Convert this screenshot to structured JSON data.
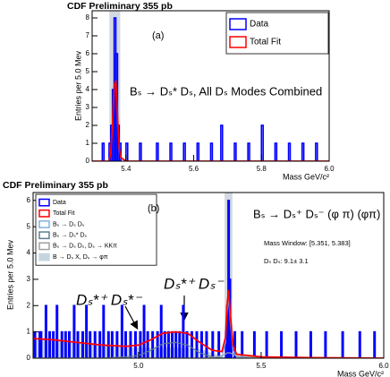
{
  "chart_data": [
    {
      "type": "histogram",
      "title": "CDF Preliminary 355 pb",
      "xlabel": "Mass GeV/c²",
      "ylabel": "Entries per 5.0 Mev",
      "xlim": [
        5.3,
        6.0
      ],
      "ylim": [
        0,
        8.4
      ],
      "xticks": [
        5.4,
        5.6,
        5.8,
        {
          "value": 6,
          "label": "6.0"
        }
      ],
      "yticks": [
        0,
        1,
        2,
        3,
        4,
        5,
        6,
        7,
        8
      ],
      "legend": "upper right",
      "highlight": [
        5.351,
        5.383
      ],
      "data": {
        "name": "Data",
        "color": "#0000ff",
        "bins": [
          5.3,
          5.33,
          5.335,
          5.35,
          5.355,
          5.36,
          5.365,
          5.37,
          5.375,
          5.38,
          5.385,
          5.4,
          5.405,
          5.44,
          5.445,
          5.49,
          5.495,
          5.53,
          5.535,
          5.57,
          5.575,
          5.61,
          5.615,
          5.65,
          5.655,
          5.68,
          5.685,
          5.72,
          5.725,
          5.76,
          5.765,
          5.8,
          5.805,
          5.84,
          5.845,
          5.88,
          5.885,
          5.92,
          5.925,
          5.96,
          5.965,
          6.0
        ],
        "values": [
          0,
          1,
          0,
          1,
          2,
          4,
          8,
          6,
          2,
          1,
          0,
          1,
          0,
          1,
          0,
          1,
          0,
          1,
          0,
          1,
          0,
          1,
          0,
          1,
          0,
          2,
          0,
          1,
          0,
          1,
          0,
          2,
          0,
          1,
          0,
          1,
          0,
          1,
          0,
          1,
          0
        ]
      },
      "curves": {
        "x": [
          5.3,
          5.35,
          5.355,
          5.36,
          5.365,
          5.37,
          5.375,
          5.38,
          5.385,
          5.4,
          6.0
        ],
        "series": [
          {
            "name": "Total Fit",
            "color": "#ff0000",
            "values": [
              0,
              0,
              0.5,
              2,
              4.2,
              4.5,
              2.5,
              0.7,
              0.2,
              0,
              0
            ]
          }
        ]
      },
      "annotations": [
        "(a)",
        "Bₛ → Dₛ* Dₛ,  All Dₛ Modes Combined"
      ]
    },
    {
      "type": "histogram",
      "title": "CDF Preliminary 355 pb",
      "xlabel": "Mass GeV/c²",
      "ylabel": "Entries per 5.0 Mev",
      "xlim": [
        4.57,
        6.0
      ],
      "ylim": [
        0,
        6.3
      ],
      "xticks": [
        {
          "value": 5,
          "label": "5.0"
        },
        5.5,
        {
          "value": 6,
          "label": "6.0"
        }
      ],
      "yticks": [
        0,
        1,
        2,
        3,
        4,
        5,
        6
      ],
      "legend": "upper left",
      "highlight": [
        5.351,
        5.383
      ],
      "data": {
        "name": "Data",
        "color": "#0000ff",
        "bins": [
          4.57,
          4.575,
          4.58,
          4.595,
          4.6,
          4.605,
          4.62,
          4.625,
          4.635,
          4.64,
          4.65,
          4.655,
          4.665,
          4.67,
          4.685,
          4.69,
          4.7,
          4.705,
          4.715,
          4.72,
          4.735,
          4.74,
          4.75,
          4.755,
          4.77,
          4.775,
          4.785,
          4.79,
          4.8,
          4.805,
          4.82,
          4.825,
          4.84,
          4.845,
          4.855,
          4.86,
          4.875,
          4.88,
          4.89,
          4.895,
          4.91,
          4.915,
          4.93,
          4.935,
          4.945,
          4.95,
          4.965,
          4.97,
          4.985,
          4.99,
          5.005,
          5.01,
          5.02,
          5.025,
          5.035,
          5.04,
          5.055,
          5.06,
          5.075,
          5.08,
          5.09,
          5.095,
          5.105,
          5.11,
          5.12,
          5.125,
          5.135,
          5.14,
          5.15,
          5.155,
          5.165,
          5.17,
          5.18,
          5.185,
          5.195,
          5.2,
          5.215,
          5.22,
          5.235,
          5.24,
          5.255,
          5.26,
          5.275,
          5.28,
          5.3,
          5.305,
          5.325,
          5.33,
          5.355,
          5.36,
          5.365,
          5.37,
          5.375,
          5.38,
          5.39,
          5.395,
          5.42,
          5.425,
          5.47,
          5.475,
          5.52,
          5.525,
          5.58,
          5.585,
          5.64,
          5.645,
          5.7,
          5.705,
          5.76,
          5.765,
          5.83,
          5.835,
          5.9,
          5.905,
          5.96,
          5.965,
          6.0
        ],
        "values": [
          0,
          1,
          0,
          1,
          1,
          0,
          2,
          0,
          1,
          0,
          1,
          0,
          2,
          0,
          1,
          0,
          1,
          0,
          1,
          0,
          2,
          0,
          1,
          0,
          1,
          0,
          2,
          0,
          1,
          0,
          1,
          0,
          1,
          0,
          2,
          0,
          1,
          0,
          1,
          0,
          1,
          0,
          2,
          0,
          1,
          0,
          1,
          0,
          1,
          0,
          1,
          0,
          2,
          0,
          1,
          0,
          1,
          0,
          1,
          0,
          2,
          0,
          1,
          0,
          1,
          0,
          1,
          0,
          1,
          0,
          1,
          0,
          2,
          0,
          1,
          0,
          1,
          0,
          1,
          0,
          1,
          0,
          1,
          0,
          1,
          0,
          1,
          0,
          1,
          2,
          6,
          3,
          1,
          0,
          1,
          0,
          1,
          0,
          1,
          0,
          1,
          0,
          1,
          0,
          1,
          0,
          1,
          0,
          1,
          0,
          1,
          0,
          1,
          0,
          1,
          0
        ]
      },
      "curves": {
        "x": [
          4.57,
          4.65,
          4.75,
          4.85,
          4.95,
          5.0,
          5.05,
          5.1,
          5.15,
          5.2,
          5.25,
          5.3,
          5.34,
          5.355,
          5.36,
          5.367,
          5.375,
          5.385,
          5.4,
          5.5,
          5.7,
          6.0
        ],
        "series": [
          {
            "name": "B → Dₛ X, Dₛ → φπ",
            "color": "#c5d5e0",
            "filled": true,
            "values": [
              0.75,
              0.7,
              0.6,
              0.5,
              0.4,
              0.4,
              0.4,
              0.4,
              0.4,
              0.4,
              0.35,
              0.2,
              0.1,
              0.05,
              0.05,
              0.05,
              0.05,
              0.04,
              0.03,
              0.02,
              0.01,
              0
            ]
          },
          {
            "name": "Bₛ → Dₛ Dₛ",
            "color": "#7fb2e0",
            "values": [
              0,
              0,
              0,
              0,
              0,
              0,
              0,
              0,
              0,
              0,
              0,
              0,
              0.05,
              0.6,
              1.6,
              2.3,
              1.3,
              0.3,
              0.05,
              0,
              0,
              0
            ]
          },
          {
            "name": "Bₛ → Dₛ* Dₛ",
            "color": "#5f7f90",
            "values": [
              0,
              0,
              0,
              0,
              0.05,
              0.1,
              0.3,
              0.55,
              0.6,
              0.5,
              0.2,
              0.05,
              0,
              0,
              0,
              0,
              0,
              0,
              0,
              0,
              0,
              0
            ]
          },
          {
            "name": "Bₛ → Dₛ Dₛ, Dₛ → KKπ",
            "color": "#a0a0a0",
            "values": [
              0,
              0,
              0,
              0,
              0,
              0,
              0,
              0,
              0,
              0,
              0,
              0.02,
              0.1,
              0.15,
              0.2,
              0.2,
              0.2,
              0.15,
              0.08,
              0.02,
              0,
              0
            ]
          },
          {
            "name": "Total Fit",
            "color": "#ff0000",
            "values": [
              0.75,
              0.7,
              0.6,
              0.5,
              0.45,
              0.5,
              0.7,
              0.95,
              1.0,
              0.95,
              0.6,
              0.3,
              0.25,
              0.8,
              1.9,
              2.6,
              1.6,
              0.5,
              0.15,
              0.05,
              0.02,
              0
            ]
          }
        ]
      },
      "legend_order": [
        0,
        5,
        2,
        3,
        4,
        1
      ],
      "annotations": [
        "(b)",
        "Bₛ → Dₛ⁺ Dₛ⁻ (φ π) (φπ)",
        "Mass Window: [5.351, 5.383]",
        "Dₛ Dₛ:  9.1±  3.1",
        "Dₛ*⁺ Dₛ*⁻",
        "Dₛ*⁺ Dₛ⁻"
      ]
    }
  ]
}
